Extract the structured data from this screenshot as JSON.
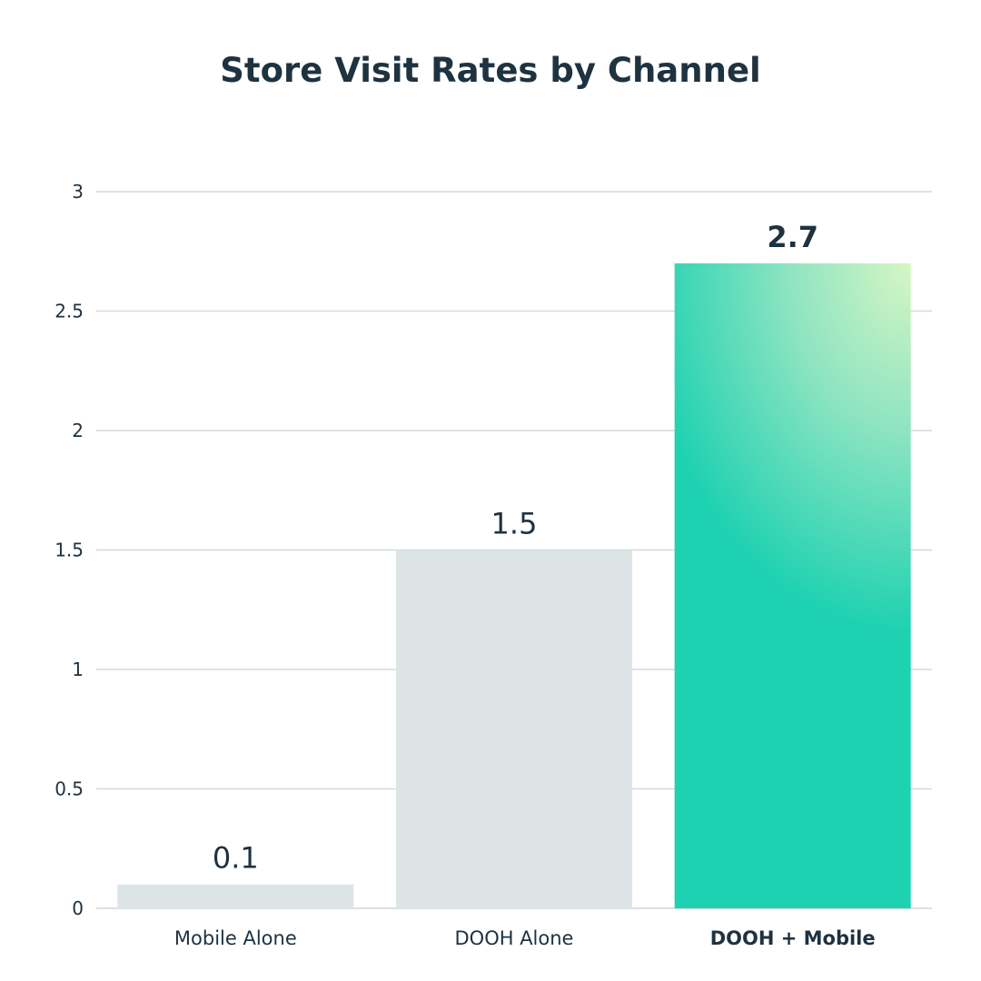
{
  "chart_data": {
    "type": "bar",
    "title": "Store Visit Rates by Channel",
    "categories": [
      "Mobile Alone",
      "DOOH Alone",
      "DOOH + Mobile"
    ],
    "values": [
      0.1,
      1.5,
      2.7
    ],
    "value_labels": [
      "0.1",
      "1.5",
      "2.7"
    ],
    "highlighted_category": "DOOH + Mobile",
    "xlabel": "",
    "ylabel": "",
    "ylim": [
      0,
      3
    ],
    "yticks": [
      0,
      0.5,
      1,
      1.5,
      2,
      2.5,
      3
    ],
    "ytick_labels": [
      "0",
      "0.5",
      "1",
      "1.5",
      "2",
      "2.5",
      "3"
    ],
    "grid": true,
    "colors": {
      "bar_default": "#dde4e6",
      "highlight_gradient": [
        "#d3f5c4",
        "#86e2c0",
        "#1dd1b1"
      ],
      "text": "#1e3240",
      "grid": "#d4d9dc"
    }
  }
}
